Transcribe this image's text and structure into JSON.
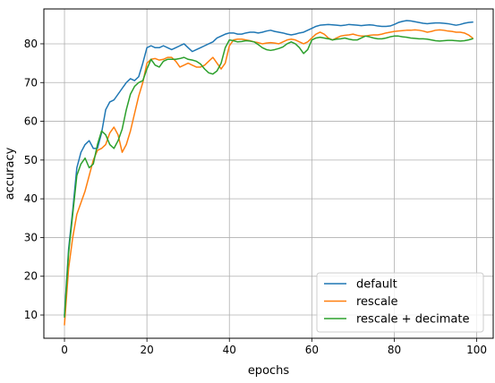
{
  "chart_data": {
    "type": "line",
    "xlabel": "epochs",
    "ylabel": "accuracy",
    "xlim": [
      -5,
      104
    ],
    "ylim": [
      4,
      89
    ],
    "xticks": [
      0,
      20,
      40,
      60,
      80,
      100
    ],
    "yticks": [
      10,
      20,
      30,
      40,
      50,
      60,
      70,
      80
    ],
    "grid": true,
    "legend_position": "bottom-right",
    "x": [
      0,
      1,
      2,
      3,
      4,
      5,
      6,
      7,
      8,
      9,
      10,
      11,
      12,
      13,
      14,
      15,
      16,
      17,
      18,
      19,
      20,
      21,
      22,
      23,
      24,
      25,
      26,
      27,
      28,
      29,
      30,
      31,
      32,
      33,
      34,
      35,
      36,
      37,
      38,
      39,
      40,
      41,
      42,
      43,
      44,
      45,
      46,
      47,
      48,
      49,
      50,
      51,
      52,
      53,
      54,
      55,
      56,
      57,
      58,
      59,
      60,
      61,
      62,
      63,
      64,
      65,
      66,
      67,
      68,
      69,
      70,
      71,
      72,
      73,
      74,
      75,
      76,
      77,
      78,
      79,
      80,
      81,
      82,
      83,
      84,
      85,
      86,
      87,
      88,
      89,
      90,
      91,
      92,
      93,
      94,
      95,
      96,
      97,
      98,
      99
    ],
    "series": [
      {
        "name": "default",
        "color": "#1f77b4",
        "values": [
          10.0,
          27.0,
          37.0,
          48.0,
          52.0,
          54.0,
          55.0,
          53.0,
          53.0,
          57.0,
          63.0,
          65.0,
          65.5,
          67.0,
          68.5,
          70.0,
          71.0,
          70.5,
          71.5,
          75.0,
          79.0,
          79.5,
          79.0,
          79.0,
          79.5,
          79.0,
          78.5,
          79.0,
          79.5,
          80.0,
          79.0,
          78.0,
          78.5,
          79.0,
          79.5,
          80.0,
          80.5,
          81.5,
          82.0,
          82.5,
          82.8,
          82.8,
          82.5,
          82.5,
          82.8,
          83.0,
          83.0,
          82.8,
          83.0,
          83.3,
          83.5,
          83.2,
          83.0,
          82.8,
          82.5,
          82.3,
          82.5,
          82.8,
          83.0,
          83.5,
          84.0,
          84.5,
          84.8,
          84.9,
          85.0,
          84.9,
          84.8,
          84.7,
          84.8,
          85.0,
          84.9,
          84.8,
          84.7,
          84.8,
          84.9,
          84.8,
          84.6,
          84.5,
          84.5,
          84.6,
          85.0,
          85.5,
          85.8,
          86.0,
          85.9,
          85.7,
          85.5,
          85.3,
          85.2,
          85.3,
          85.4,
          85.4,
          85.3,
          85.2,
          85.0,
          84.8,
          85.0,
          85.3,
          85.5,
          85.6
        ]
      },
      {
        "name": "rescale",
        "color": "#ff7f0e",
        "values": [
          7.5,
          22.0,
          30.0,
          36.0,
          39.0,
          42.0,
          46.0,
          50.0,
          52.5,
          53.0,
          54.0,
          57.0,
          58.5,
          56.5,
          52.0,
          54.0,
          57.5,
          62.0,
          66.5,
          70.0,
          75.0,
          76.0,
          76.2,
          75.8,
          76.0,
          76.5,
          76.5,
          75.5,
          74.0,
          74.5,
          75.0,
          74.5,
          74.0,
          74.0,
          74.5,
          75.5,
          76.5,
          75.0,
          73.5,
          75.0,
          79.5,
          81.0,
          81.2,
          81.2,
          81.0,
          80.8,
          80.5,
          80.3,
          80.0,
          80.2,
          80.3,
          80.2,
          80.0,
          80.5,
          81.0,
          81.2,
          81.0,
          80.5,
          80.0,
          80.5,
          81.5,
          82.5,
          83.0,
          82.5,
          81.5,
          81.0,
          81.5,
          82.0,
          82.2,
          82.3,
          82.5,
          82.2,
          82.0,
          82.0,
          82.2,
          82.3,
          82.3,
          82.5,
          82.8,
          83.0,
          83.2,
          83.3,
          83.4,
          83.5,
          83.5,
          83.6,
          83.5,
          83.3,
          83.0,
          83.2,
          83.5,
          83.6,
          83.5,
          83.3,
          83.2,
          83.0,
          83.0,
          82.8,
          82.3,
          81.5
        ]
      },
      {
        "name": "rescale + decimate",
        "color": "#2ca02c",
        "values": [
          9.5,
          26.0,
          36.0,
          46.0,
          49.0,
          50.5,
          48.0,
          49.0,
          54.0,
          57.5,
          56.5,
          54.0,
          53.0,
          55.0,
          58.0,
          63.0,
          67.0,
          69.0,
          70.0,
          70.5,
          73.5,
          76.0,
          74.5,
          74.0,
          75.5,
          76.0,
          76.0,
          76.0,
          76.2,
          76.5,
          76.0,
          75.8,
          75.5,
          74.8,
          73.5,
          72.5,
          72.2,
          73.0,
          75.0,
          79.0,
          81.0,
          80.8,
          80.5,
          80.6,
          80.8,
          80.7,
          80.5,
          79.8,
          79.0,
          78.5,
          78.3,
          78.5,
          78.8,
          79.2,
          80.0,
          80.5,
          80.0,
          79.0,
          77.5,
          78.5,
          81.0,
          81.5,
          81.7,
          81.5,
          81.3,
          81.0,
          81.2,
          81.3,
          81.5,
          81.2,
          81.0,
          81.0,
          81.5,
          82.0,
          81.8,
          81.5,
          81.3,
          81.3,
          81.5,
          81.8,
          82.0,
          82.0,
          81.8,
          81.7,
          81.5,
          81.4,
          81.3,
          81.3,
          81.2,
          81.0,
          80.8,
          80.7,
          80.8,
          80.9,
          80.9,
          80.8,
          80.7,
          80.8,
          81.0,
          81.3
        ]
      }
    ]
  }
}
